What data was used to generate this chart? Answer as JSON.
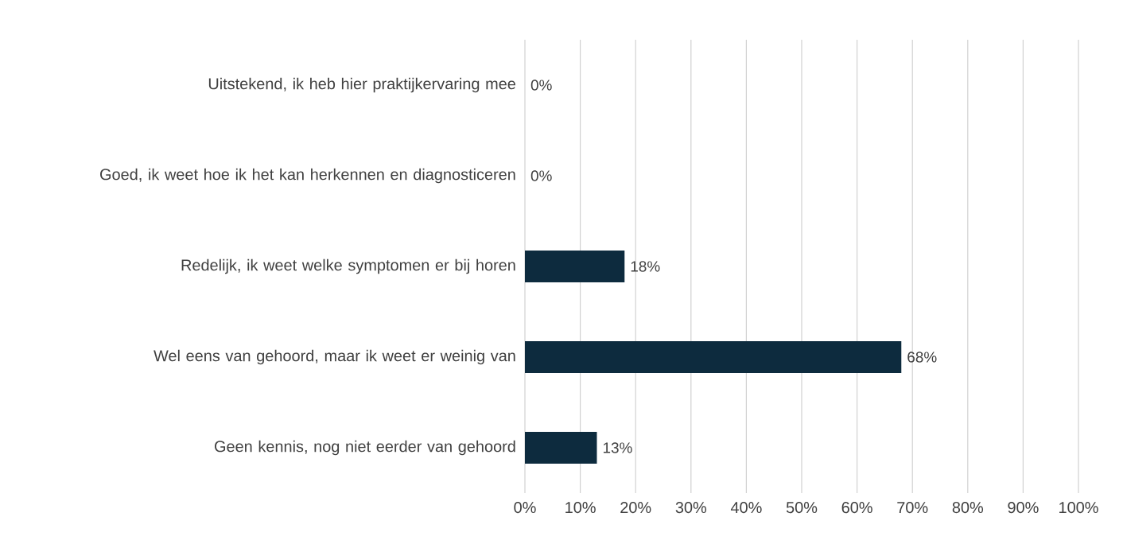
{
  "chart_data": {
    "type": "bar",
    "orientation": "horizontal",
    "categories": [
      "Uitstekend, ik heb hier praktijkervaring mee",
      "Goed, ik weet hoe ik het kan herkennen en diagnosticeren",
      "Redelijk, ik weet welke symptomen er bij horen",
      "Wel eens van gehoord, maar ik weet er weinig van",
      "Geen kennis, nog niet eerder van gehoord"
    ],
    "values": [
      0,
      0,
      18,
      68,
      13
    ],
    "value_labels": [
      "0%",
      "0%",
      "18%",
      "68%",
      "13%"
    ],
    "color": "#0d2b3e",
    "xlim": [
      0,
      100
    ],
    "xticks": [
      {
        "value": 0,
        "label": "0%"
      },
      {
        "value": 10,
        "label": "10%"
      },
      {
        "value": 20,
        "label": "20%"
      },
      {
        "value": 30,
        "label": "30%"
      },
      {
        "value": 40,
        "label": "40%"
      },
      {
        "value": 50,
        "label": "50%"
      },
      {
        "value": 60,
        "label": "60%"
      },
      {
        "value": 70,
        "label": "70%"
      },
      {
        "value": 80,
        "label": "80%"
      },
      {
        "value": 90,
        "label": "90%"
      },
      {
        "value": 100,
        "label": "100%"
      }
    ],
    "grid": "x"
  }
}
